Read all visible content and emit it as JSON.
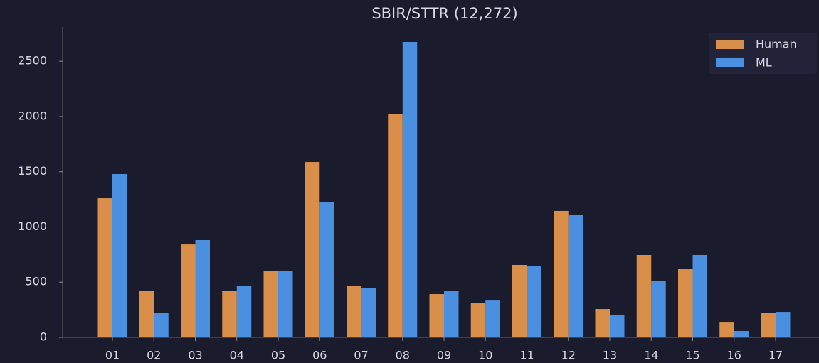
{
  "chart_data": {
    "type": "bar",
    "title": "SBIR/STTR (12,272)",
    "categories": [
      "01",
      "02",
      "03",
      "04",
      "05",
      "06",
      "07",
      "08",
      "09",
      "10",
      "11",
      "12",
      "13",
      "14",
      "15",
      "16",
      "17"
    ],
    "series": [
      {
        "name": "Human",
        "color": "#d98f4a",
        "values": [
          1260,
          418,
          842,
          424,
          604,
          1588,
          469,
          2025,
          392,
          315,
          656,
          1145,
          257,
          746,
          617,
          141,
          219
        ]
      },
      {
        "name": "ML",
        "color": "#4a8fe0",
        "values": [
          1479,
          225,
          881,
          463,
          604,
          1228,
          444,
          2675,
          424,
          334,
          643,
          1112,
          206,
          514,
          746,
          58,
          231
        ]
      }
    ],
    "ylim": [
      0,
      2810
    ],
    "yticks": [
      0,
      500,
      1000,
      1500,
      2000,
      2500
    ],
    "legend": "upper right"
  }
}
